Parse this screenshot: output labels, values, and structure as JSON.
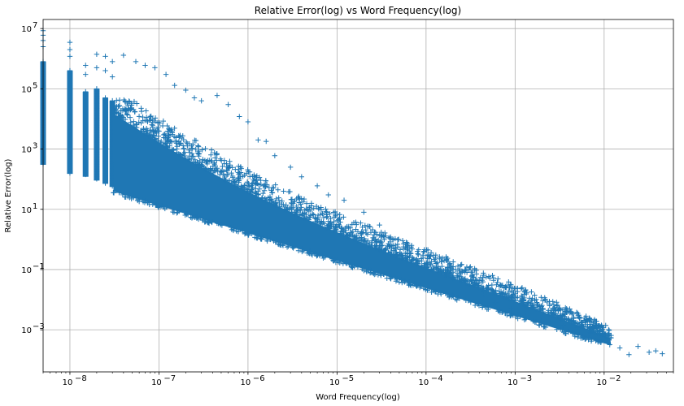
{
  "chart_data": {
    "type": "scatter",
    "title": "Relative Error(log) vs Word Frequency(log)",
    "xlabel": "Word Frequency(log)",
    "ylabel": "Relative Error(log)",
    "xscale": "log",
    "yscale": "log",
    "xlim": [
      5e-09,
      0.06
    ],
    "ylim": [
      4e-05,
      20000000
    ],
    "grid": true,
    "marker": "+",
    "color": "#1f77b4",
    "x_ticks": [
      {
        "exp": -8,
        "label": "10",
        "sup": "−8"
      },
      {
        "exp": -7,
        "label": "10",
        "sup": "−7"
      },
      {
        "exp": -6,
        "label": "10",
        "sup": "−6"
      },
      {
        "exp": -5,
        "label": "10",
        "sup": "−5"
      },
      {
        "exp": -4,
        "label": "10",
        "sup": "−4"
      },
      {
        "exp": -3,
        "label": "10",
        "sup": "−3"
      },
      {
        "exp": -2,
        "label": "10",
        "sup": "−2"
      }
    ],
    "y_ticks": [
      {
        "exp": 7,
        "label": "10",
        "sup": "7"
      },
      {
        "exp": 5,
        "label": "10",
        "sup": "5"
      },
      {
        "exp": 3,
        "label": "10",
        "sup": "3"
      },
      {
        "exp": 1,
        "label": "10",
        "sup": "1"
      },
      {
        "exp": -1,
        "label": "10",
        "sup": "−1"
      },
      {
        "exp": -3,
        "label": "10",
        "sup": "−3"
      }
    ],
    "columns": [
      {
        "x": 5e-09,
        "ymin": 300,
        "ymax": 800000
      },
      {
        "x": 1e-08,
        "ymin": 150,
        "ymax": 400000
      },
      {
        "x": 1.5e-08,
        "ymin": 120,
        "ymax": 80000
      },
      {
        "x": 2e-08,
        "ymin": 90,
        "ymax": 100000
      },
      {
        "x": 2.5e-08,
        "ymin": 70,
        "ymax": 50000
      },
      {
        "x": 3e-08,
        "ymin": 55,
        "ymax": 40000
      }
    ],
    "column_outliers": [
      {
        "x": 5e-09,
        "y": 8500000
      },
      {
        "x": 5e-09,
        "y": 6000000
      },
      {
        "x": 5e-09,
        "y": 4000000
      },
      {
        "x": 5e-09,
        "y": 2500000
      },
      {
        "x": 1e-08,
        "y": 3500000
      },
      {
        "x": 1e-08,
        "y": 2000000
      },
      {
        "x": 1e-08,
        "y": 1200000
      },
      {
        "x": 1.5e-08,
        "y": 600000
      },
      {
        "x": 1.5e-08,
        "y": 300000
      },
      {
        "x": 2e-08,
        "y": 1400000
      },
      {
        "x": 2e-08,
        "y": 500000
      },
      {
        "x": 2.5e-08,
        "y": 1200000
      },
      {
        "x": 2.5e-08,
        "y": 400000
      },
      {
        "x": 3e-08,
        "y": 800000
      },
      {
        "x": 3e-08,
        "y": 250000
      }
    ],
    "band": {
      "x_start": 3e-08,
      "x_end": 0.012,
      "lower_at_start": 40,
      "upper_at_start": 120000,
      "lower_at_end": 0.0003,
      "upper_at_end": 0.0012
    },
    "sparse_points": [
      {
        "x": 4e-08,
        "y": 1300000
      },
      {
        "x": 5.5e-08,
        "y": 800000
      },
      {
        "x": 7e-08,
        "y": 600000
      },
      {
        "x": 9e-08,
        "y": 500000
      },
      {
        "x": 1.2e-07,
        "y": 300000
      },
      {
        "x": 1.5e-07,
        "y": 130000
      },
      {
        "x": 2e-07,
        "y": 90000
      },
      {
        "x": 2.5e-07,
        "y": 50000
      },
      {
        "x": 3e-07,
        "y": 40000
      },
      {
        "x": 4.5e-07,
        "y": 60000
      },
      {
        "x": 6e-07,
        "y": 30000
      },
      {
        "x": 8e-07,
        "y": 12000
      },
      {
        "x": 1e-06,
        "y": 8000
      },
      {
        "x": 1.3e-06,
        "y": 2000
      },
      {
        "x": 1.6e-06,
        "y": 1800
      },
      {
        "x": 2e-06,
        "y": 600
      },
      {
        "x": 3e-06,
        "y": 250
      },
      {
        "x": 4e-06,
        "y": 120
      },
      {
        "x": 6e-06,
        "y": 60
      },
      {
        "x": 8e-06,
        "y": 30
      },
      {
        "x": 1.2e-05,
        "y": 20
      },
      {
        "x": 2e-05,
        "y": 8
      },
      {
        "x": 3e-05,
        "y": 3
      },
      {
        "x": 4e-05,
        "y": 1.2
      },
      {
        "x": 6e-05,
        "y": 0.8
      },
      {
        "x": 8e-05,
        "y": 0.4
      },
      {
        "x": 0.00011,
        "y": 0.15
      },
      {
        "x": 0.00015,
        "y": 0.08
      },
      {
        "x": 0.0002,
        "y": 0.05
      },
      {
        "x": 0.0003,
        "y": 0.03
      },
      {
        "x": 0.00045,
        "y": 0.015
      },
      {
        "x": 0.0006,
        "y": 0.008
      },
      {
        "x": 0.0009,
        "y": 0.005
      },
      {
        "x": 0.0013,
        "y": 0.003
      },
      {
        "x": 0.002,
        "y": 0.002
      },
      {
        "x": 0.0025,
        "y": 0.0018
      },
      {
        "x": 0.0035,
        "y": 0.0014
      },
      {
        "x": 0.005,
        "y": 0.0012
      },
      {
        "x": 0.007,
        "y": 0.0008
      },
      {
        "x": 0.0095,
        "y": 0.0007
      },
      {
        "x": 0.012,
        "y": 0.00065
      },
      {
        "x": 0.015,
        "y": 0.00025
      },
      {
        "x": 0.019,
        "y": 0.00015
      },
      {
        "x": 0.024,
        "y": 0.00028
      },
      {
        "x": 0.032,
        "y": 0.00018
      },
      {
        "x": 0.038,
        "y": 0.0002
      },
      {
        "x": 0.045,
        "y": 0.00016
      }
    ]
  }
}
